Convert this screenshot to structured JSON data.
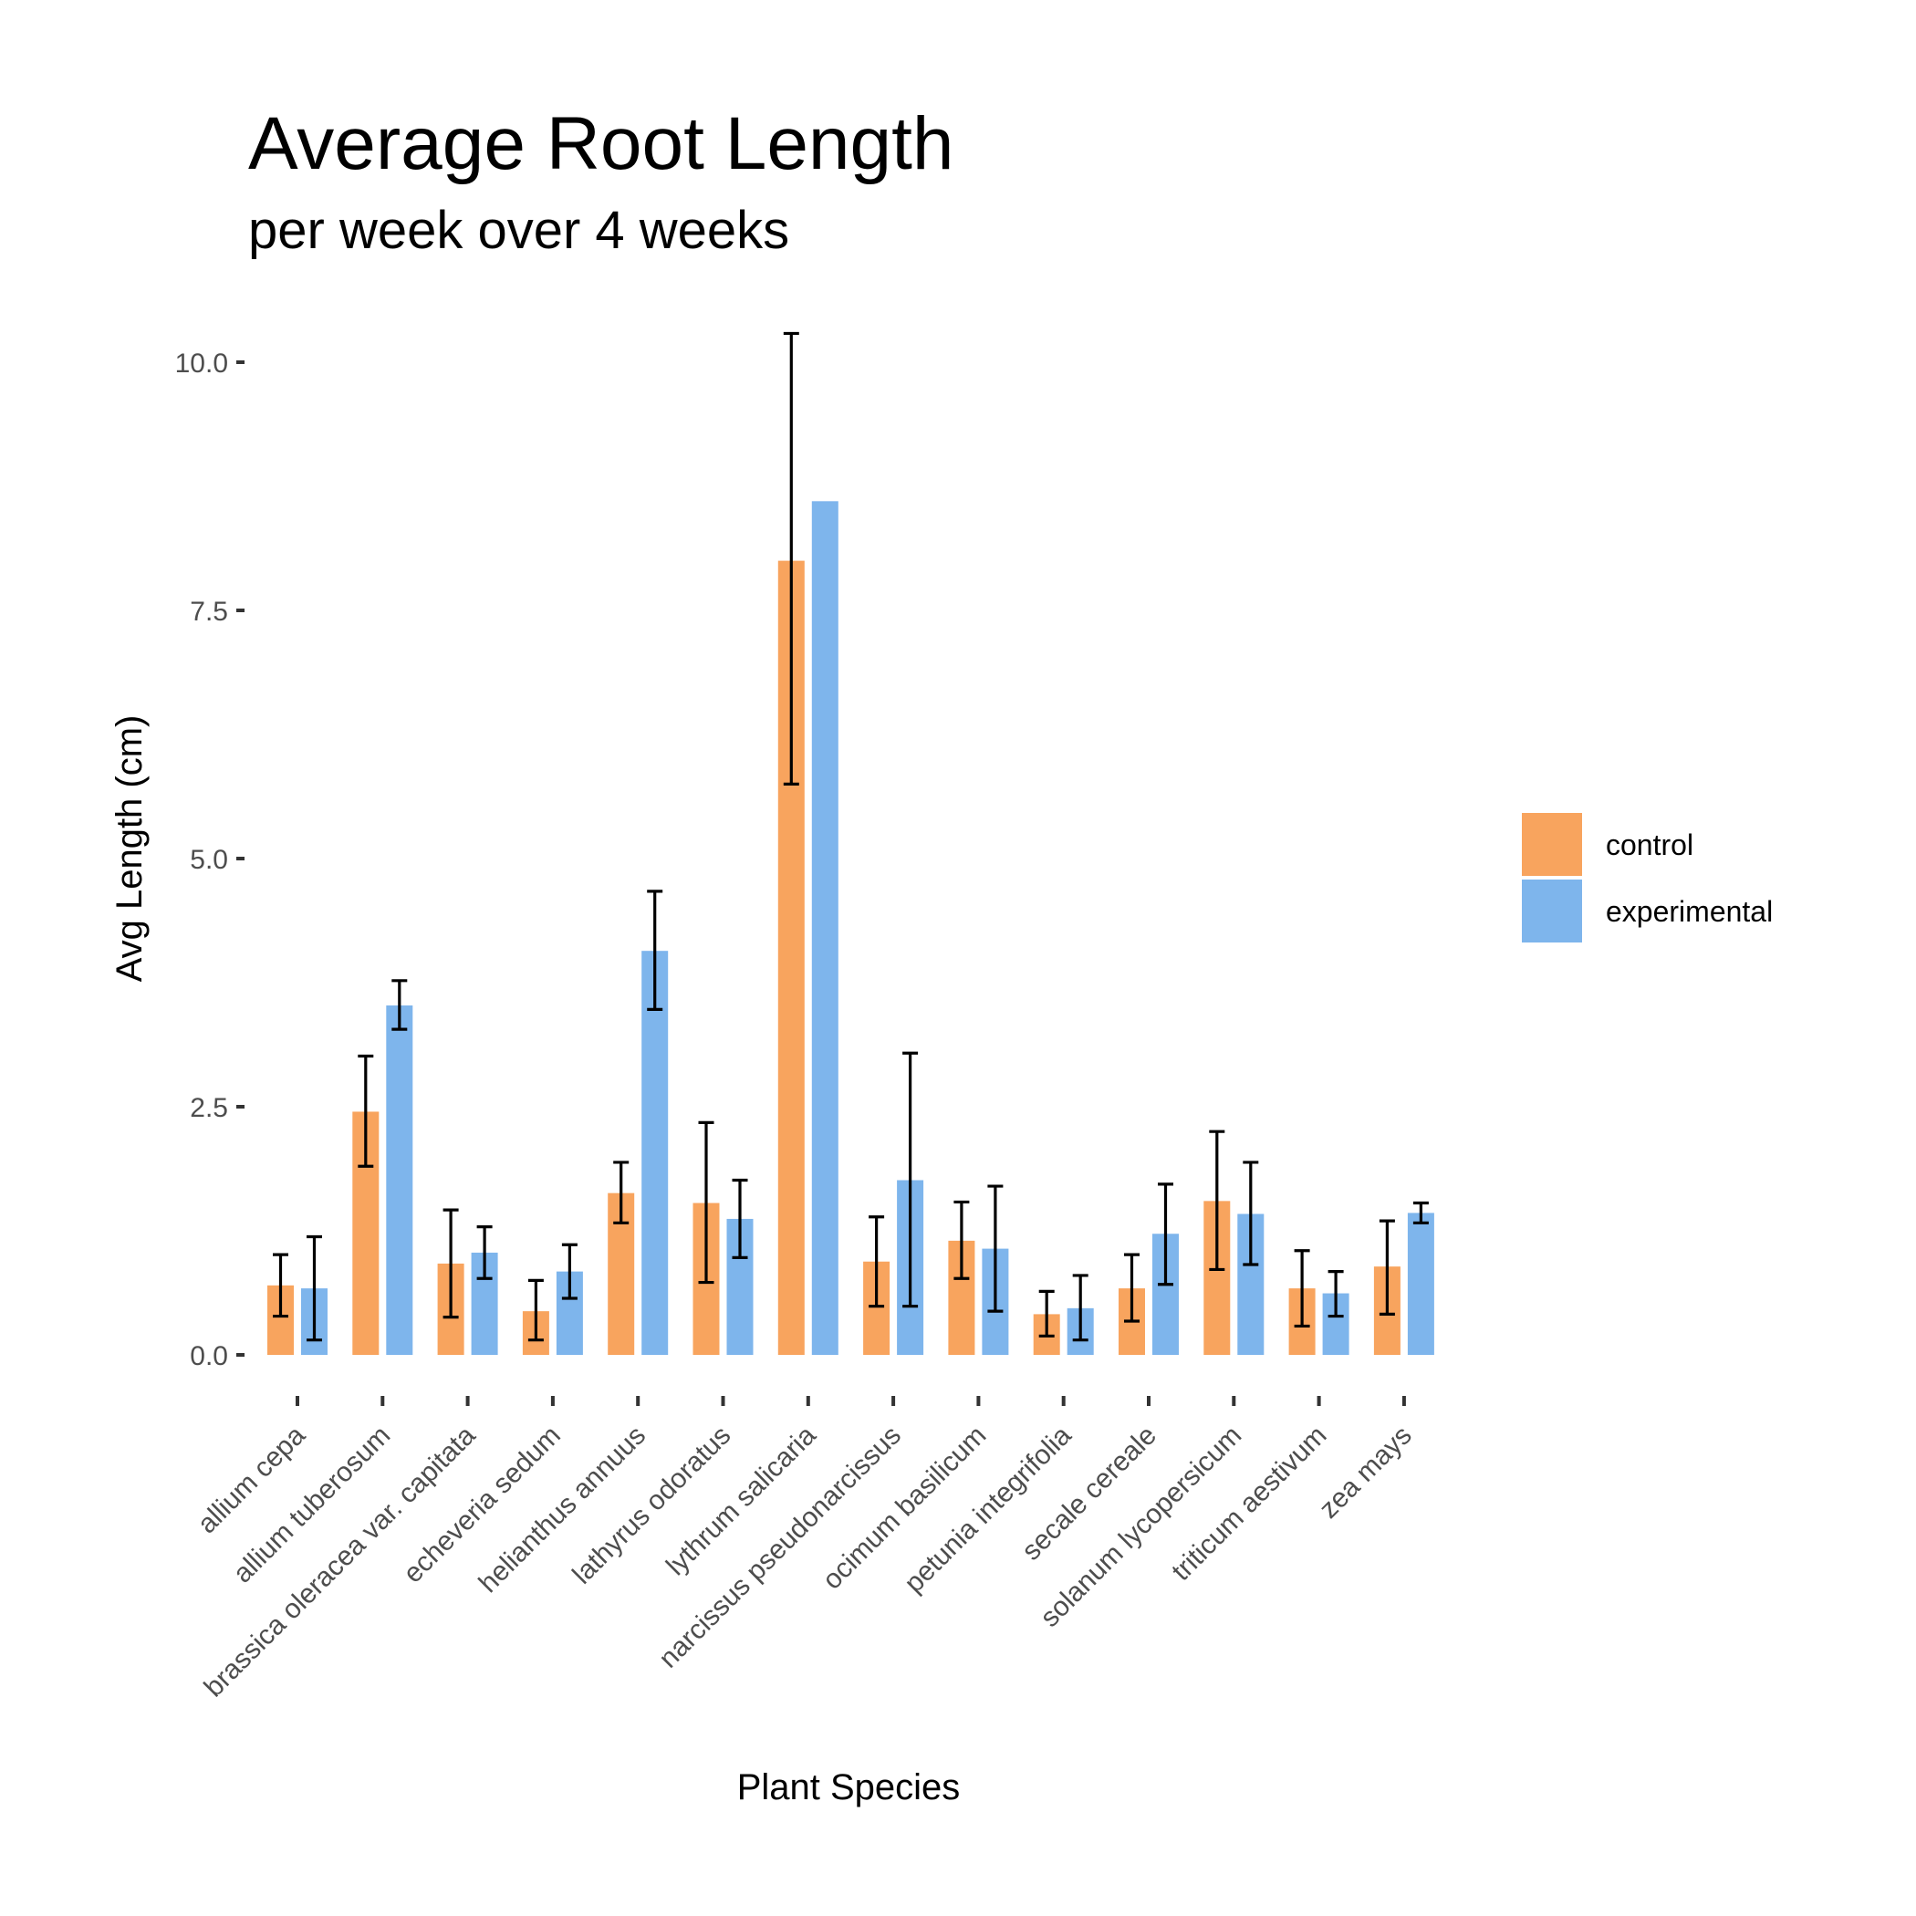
{
  "chart_data": {
    "type": "bar",
    "title": "Average Root Length",
    "subtitle": "per week over 4 weeks",
    "xlabel": "Plant Species",
    "ylabel": "Avg Length (cm)",
    "ylim": [
      0,
      10
    ],
    "yticks": [
      0,
      2.5,
      5,
      7.5,
      10
    ],
    "ytick_labels": [
      "0.0",
      "2.5",
      "5.0",
      "7.5",
      "10.0"
    ],
    "grid": false,
    "legend_position": "right",
    "categories": [
      "allium cepa",
      "allium tuberosum",
      "brassica oleracea var. capitata",
      "echeveria sedum",
      "helianthus annuus",
      "lathyrus odoratus",
      "lythrum salicaria",
      "narcissus pseudonarcissus",
      "ocimum basilicum",
      "petunia integrifolia",
      "secale cereale",
      "solanum lycopersicum",
      "triticum aestivum",
      "zea mays"
    ],
    "series": [
      {
        "name": "control",
        "color": "#F8A45E",
        "values": [
          0.7,
          2.45,
          0.92,
          0.44,
          1.63,
          1.53,
          8.0,
          0.94,
          1.15,
          0.41,
          0.67,
          1.55,
          0.67,
          0.89
        ],
        "error_low": [
          0.39,
          1.9,
          0.38,
          0.15,
          1.33,
          0.73,
          5.75,
          0.49,
          0.77,
          0.19,
          0.34,
          0.86,
          0.29,
          0.41
        ],
        "error_high": [
          1.01,
          3.01,
          1.46,
          0.75,
          1.94,
          2.34,
          10.29,
          1.39,
          1.54,
          0.64,
          1.01,
          2.25,
          1.05,
          1.35
        ]
      },
      {
        "name": "experimental",
        "color": "#7EB5EC",
        "values": [
          0.67,
          3.52,
          1.03,
          0.84,
          4.07,
          1.37,
          8.6,
          1.76,
          1.07,
          0.47,
          1.22,
          1.42,
          0.62,
          1.43
        ],
        "error_low": [
          0.15,
          3.28,
          0.77,
          0.57,
          3.48,
          0.98,
          8.6,
          0.49,
          0.44,
          0.15,
          0.71,
          0.91,
          0.39,
          1.33
        ],
        "error_high": [
          1.19,
          3.77,
          1.29,
          1.11,
          4.67,
          1.76,
          8.6,
          3.04,
          1.7,
          0.8,
          1.72,
          1.94,
          0.84,
          1.53
        ]
      }
    ]
  }
}
